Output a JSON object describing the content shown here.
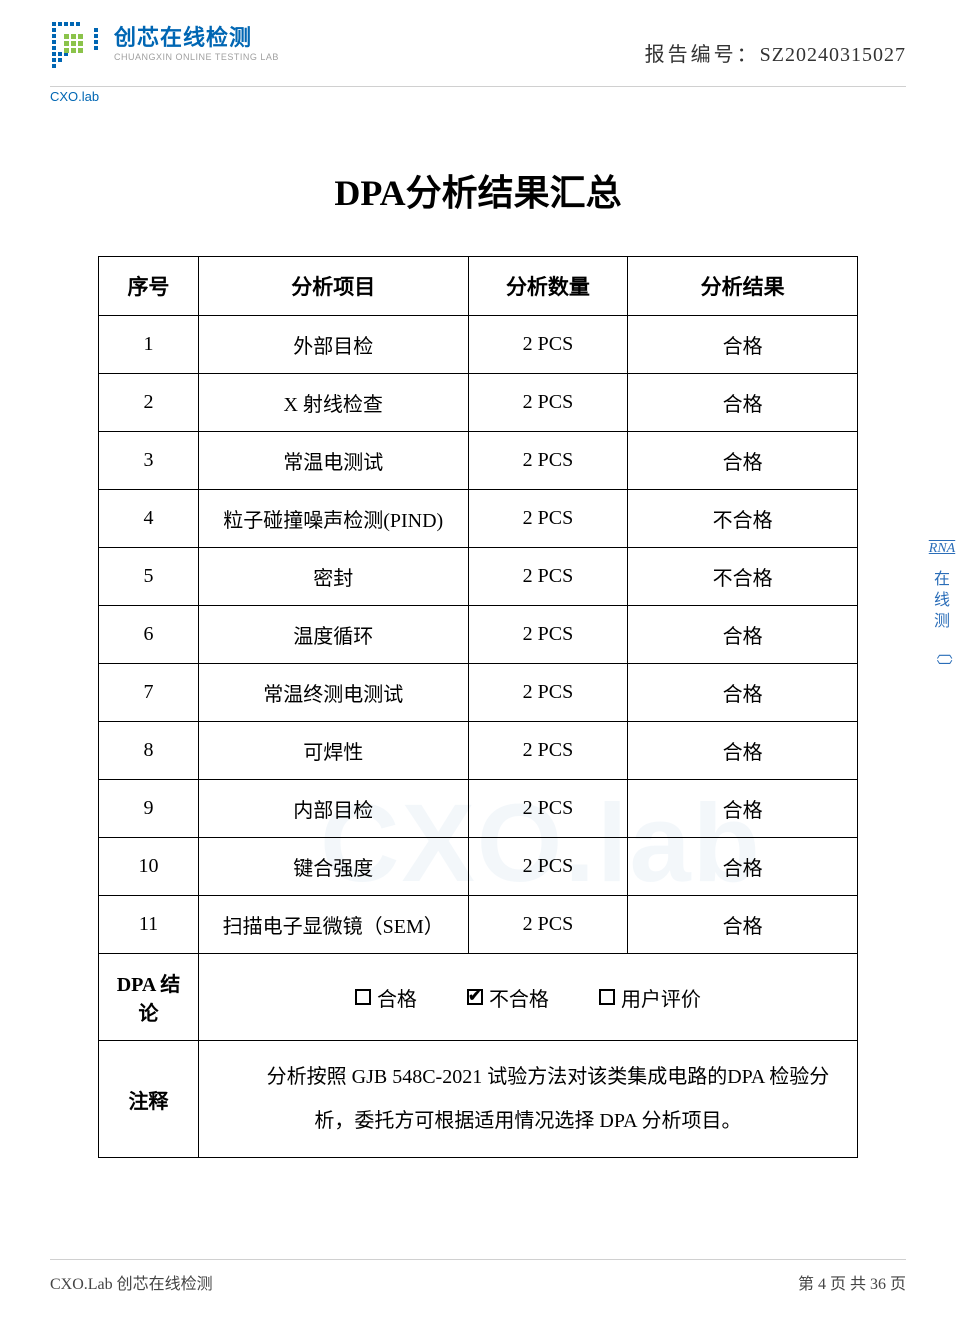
{
  "header": {
    "logo_cn": "创芯在线检测",
    "logo_en": "CHUANGXIN ONLINE TESTING LAB",
    "cxo": "CXO.lab",
    "report_label": "报告编号：",
    "report_no": "SZ20240315027"
  },
  "title": "DPA分析结果汇总",
  "table": {
    "headers": {
      "seq": "序号",
      "item": "分析项目",
      "qty": "分析数量",
      "result": "分析结果"
    },
    "rows": [
      {
        "seq": "1",
        "item": "外部目检",
        "qty": "2 PCS",
        "result": "合格"
      },
      {
        "seq": "2",
        "item": "X 射线检查",
        "qty": "2 PCS",
        "result": "合格"
      },
      {
        "seq": "3",
        "item": "常温电测试",
        "qty": "2 PCS",
        "result": "合格"
      },
      {
        "seq": "4",
        "item": "粒子碰撞噪声检测(PIND)",
        "qty": "2 PCS",
        "result": "不合格"
      },
      {
        "seq": "5",
        "item": "密封",
        "qty": "2 PCS",
        "result": "不合格"
      },
      {
        "seq": "6",
        "item": "温度循环",
        "qty": "2 PCS",
        "result": "合格"
      },
      {
        "seq": "7",
        "item": "常温终测电测试",
        "qty": "2 PCS",
        "result": "合格"
      },
      {
        "seq": "8",
        "item": "可焊性",
        "qty": "2 PCS",
        "result": "合格"
      },
      {
        "seq": "9",
        "item": "内部目检",
        "qty": "2 PCS",
        "result": "合格"
      },
      {
        "seq": "10",
        "item": "键合强度",
        "qty": "2 PCS",
        "result": "合格"
      },
      {
        "seq": "11",
        "item": "扫描电子显微镜（SEM）",
        "qty": "2 PCS",
        "result": "合格"
      }
    ],
    "conclusion_label": "DPA 结论",
    "conclusion_options": [
      {
        "label": "合格",
        "checked": false
      },
      {
        "label": "不合格",
        "checked": true
      },
      {
        "label": "用户评价",
        "checked": false
      }
    ],
    "note_label": "注释",
    "note_text": "分析按照 GJB 548C-2021 试验方法对该类集成电路的DPA 检验分析，委托方可根据适用情况选择 DPA 分析项目。"
  },
  "footer": {
    "left": "CXO.Lab 创芯在线检测",
    "right": "第 4 页 共 36 页"
  },
  "side": {
    "rna": "RNA",
    "cn1": "在线",
    "cn2": "测"
  },
  "colors": {
    "brand_blue": "#0066b3",
    "brand_green": "#8bc34a",
    "text": "#000000",
    "border": "#000000",
    "watermark_tint": "#e8f0f7"
  }
}
